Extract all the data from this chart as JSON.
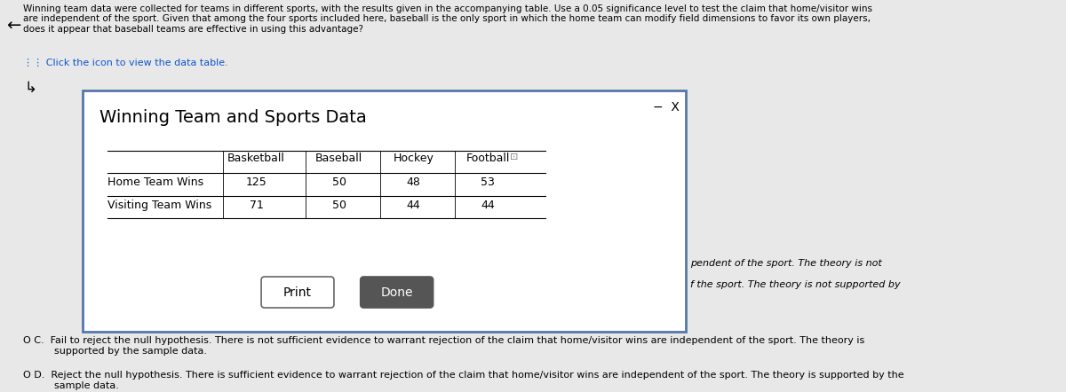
{
  "bg_color": "#e8e8e8",
  "header_text": "Winning team data were collected for teams in different sports, with the results given in the accompanying table. Use a 0.05 significance level to test the claim that home/visitor wins\nare independent of the sport. Given that among the four sports included here, baseball is the only sport in which the home team can modify field dimensions to favor its own players,\ndoes it appear that baseball teams are effective in using this advantage?",
  "click_text": "⋮⋮ Click the icon to view the data table.",
  "dialog_title": "Winning Team and Sports Data",
  "dialog_bg": "#f0f0f0",
  "dialog_border": "#5577aa",
  "table_cols": [
    "",
    "Basketball",
    "Baseball",
    "Hockey",
    "Football"
  ],
  "table_rows": [
    [
      "Home Team Wins",
      "125",
      "50",
      "48",
      "53"
    ],
    [
      "Visiting Team Wins",
      "71",
      "50",
      "44",
      "44"
    ]
  ],
  "print_btn": "Print",
  "done_btn": "Done",
  "right_partial_1": "pendent of the sport. The theory is not",
  "right_partial_2": "f the sport. The theory is not supported by",
  "option_c": "O C.  Fail to reject the null hypothesis. There is not sufficient evidence to warrant rejection of the claim that home/visitor wins are independent of the sport. The theory is\n          supported by the sample data.",
  "option_d": "O D.  Reject the null hypothesis. There is sufficient evidence to warrant rejection of the claim that home/visitor wins are independent of the sport. The theory is supported by the\n          sample data.",
  "minus_x": "−  X",
  "arrow_symbol": "←",
  "cursor_symbol": "⤵"
}
